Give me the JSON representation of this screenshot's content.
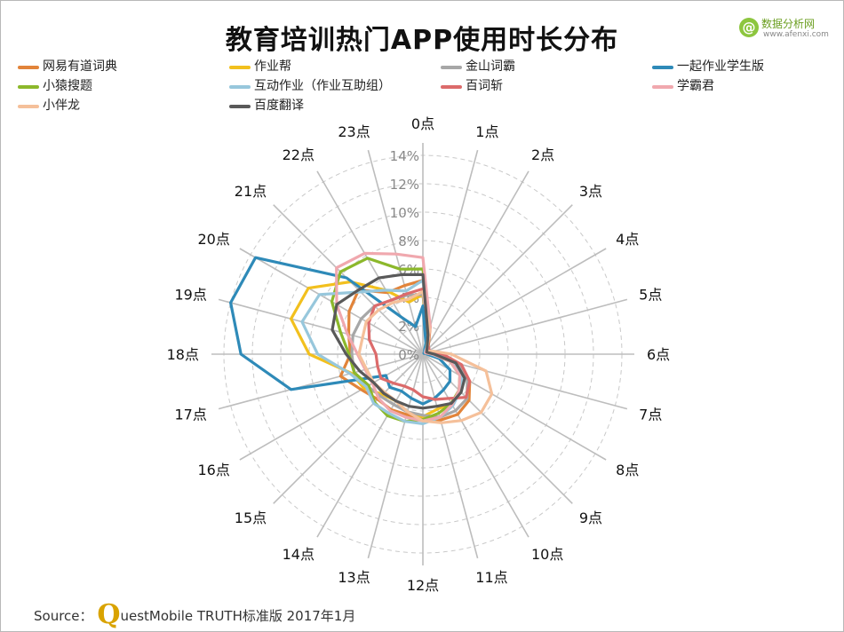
{
  "title": "教育培训热门APP使用时长分布",
  "brand": {
    "name": "数据分析网",
    "site": "www.afenxi.com"
  },
  "source": {
    "prefix": "Source：",
    "q": "Q",
    "rest": "uestMobile TRUTH标准版 2017年1月"
  },
  "chart_data": {
    "type": "radar",
    "title": "教育培训热门APP使用时长分布",
    "categories": [
      "0点",
      "1点",
      "2点",
      "3点",
      "4点",
      "5点",
      "6点",
      "7点",
      "8点",
      "9点",
      "10点",
      "11点",
      "12点",
      "13点",
      "14点",
      "15点",
      "16点",
      "17点",
      "18点",
      "19点",
      "20点",
      "21点",
      "22点",
      "23点"
    ],
    "radial_ticks": [
      "0%",
      "2%",
      "4%",
      "6%",
      "8%",
      "10%",
      "12%",
      "14%"
    ],
    "rmax": 15,
    "gridlines": "dashed",
    "legend_position": "top",
    "series": [
      {
        "name": "网易有道词典",
        "color": "#e2843a",
        "values": [
          5.2,
          2.0,
          0.8,
          0.5,
          0.3,
          0.4,
          0.8,
          2.2,
          3.8,
          4.6,
          4.9,
          4.8,
          4.6,
          4.4,
          4.5,
          4.5,
          5.0,
          6.0,
          5.1,
          5.4,
          6.0,
          6.4,
          5.0,
          5.0
        ]
      },
      {
        "name": "作业帮",
        "color": "#f2c01e",
        "values": [
          4.2,
          1.2,
          0.4,
          0.2,
          0.2,
          0.3,
          0.6,
          2.0,
          3.2,
          3.6,
          4.0,
          4.0,
          4.4,
          4.2,
          3.8,
          4.0,
          4.8,
          5.2,
          8.0,
          9.6,
          9.3,
          7.2,
          5.2,
          3.8
        ]
      },
      {
        "name": "金山词霸",
        "color": "#a7a7a7",
        "values": [
          4.2,
          1.5,
          0.6,
          0.4,
          0.3,
          0.3,
          1.2,
          2.6,
          3.6,
          4.4,
          4.6,
          4.6,
          4.3,
          4.2,
          4.1,
          4.2,
          4.5,
          5.0,
          5.0,
          5.1,
          5.0,
          4.8,
          4.4,
          4.3
        ]
      },
      {
        "name": "一起作业学生版",
        "color": "#2e8ab8",
        "values": [
          3.4,
          0.8,
          0.2,
          0.1,
          0.1,
          0.2,
          0.3,
          1.2,
          2.2,
          2.7,
          2.9,
          3.2,
          3.5,
          3.2,
          3.0,
          3.3,
          3.0,
          9.6,
          12.8,
          14.0,
          13.6,
          7.6,
          3.0,
          2.0
        ]
      },
      {
        "name": "小猿搜题",
        "color": "#8cb82b",
        "values": [
          6.0,
          1.6,
          0.5,
          0.3,
          0.2,
          0.3,
          0.7,
          2.0,
          3.0,
          3.6,
          4.0,
          4.3,
          4.6,
          4.9,
          5.0,
          4.8,
          4.4,
          5.0,
          5.2,
          6.0,
          7.4,
          8.2,
          7.8,
          6.2
        ]
      },
      {
        "name": "互动作业（作业互助组）",
        "color": "#97c7dc",
        "values": [
          5.2,
          1.6,
          0.5,
          0.2,
          0.2,
          0.3,
          0.6,
          2.1,
          3.2,
          3.7,
          4.2,
          4.6,
          4.9,
          4.9,
          4.8,
          4.9,
          4.6,
          5.3,
          7.4,
          8.8,
          8.4,
          6.2,
          5.2,
          4.6
        ]
      },
      {
        "name": "百词斩",
        "color": "#dc6b6b",
        "values": [
          4.6,
          1.8,
          0.7,
          0.6,
          0.5,
          0.6,
          1.4,
          2.8,
          3.8,
          4.3,
          3.6,
          3.3,
          3.0,
          2.6,
          2.6,
          2.9,
          3.4,
          3.3,
          3.3,
          3.9,
          4.4,
          4.8,
          4.4,
          4.4
        ]
      },
      {
        "name": "学霸君",
        "color": "#f0a8ae",
        "values": [
          6.8,
          2.0,
          0.6,
          0.3,
          0.2,
          0.3,
          0.7,
          2.0,
          3.0,
          3.6,
          4.1,
          4.6,
          4.7,
          4.6,
          4.6,
          4.4,
          4.1,
          4.2,
          4.6,
          5.5,
          7.0,
          8.6,
          8.2,
          7.3
        ]
      },
      {
        "name": "小伴龙",
        "color": "#f5c09a",
        "values": [
          4.4,
          1.8,
          0.6,
          0.4,
          0.4,
          0.8,
          2.0,
          4.6,
          5.6,
          5.8,
          5.4,
          5.0,
          4.7,
          4.2,
          3.8,
          3.8,
          4.0,
          4.1,
          4.5,
          4.4,
          4.6,
          4.4,
          4.2,
          4.0
        ]
      },
      {
        "name": "百度翻译",
        "color": "#595959",
        "values": [
          5.6,
          1.4,
          0.6,
          0.4,
          0.3,
          0.4,
          0.8,
          2.4,
          3.4,
          3.8,
          4.0,
          3.8,
          3.8,
          3.8,
          3.8,
          3.9,
          4.0,
          4.6,
          5.4,
          6.6,
          7.0,
          6.4,
          6.2,
          5.8
        ]
      }
    ]
  }
}
